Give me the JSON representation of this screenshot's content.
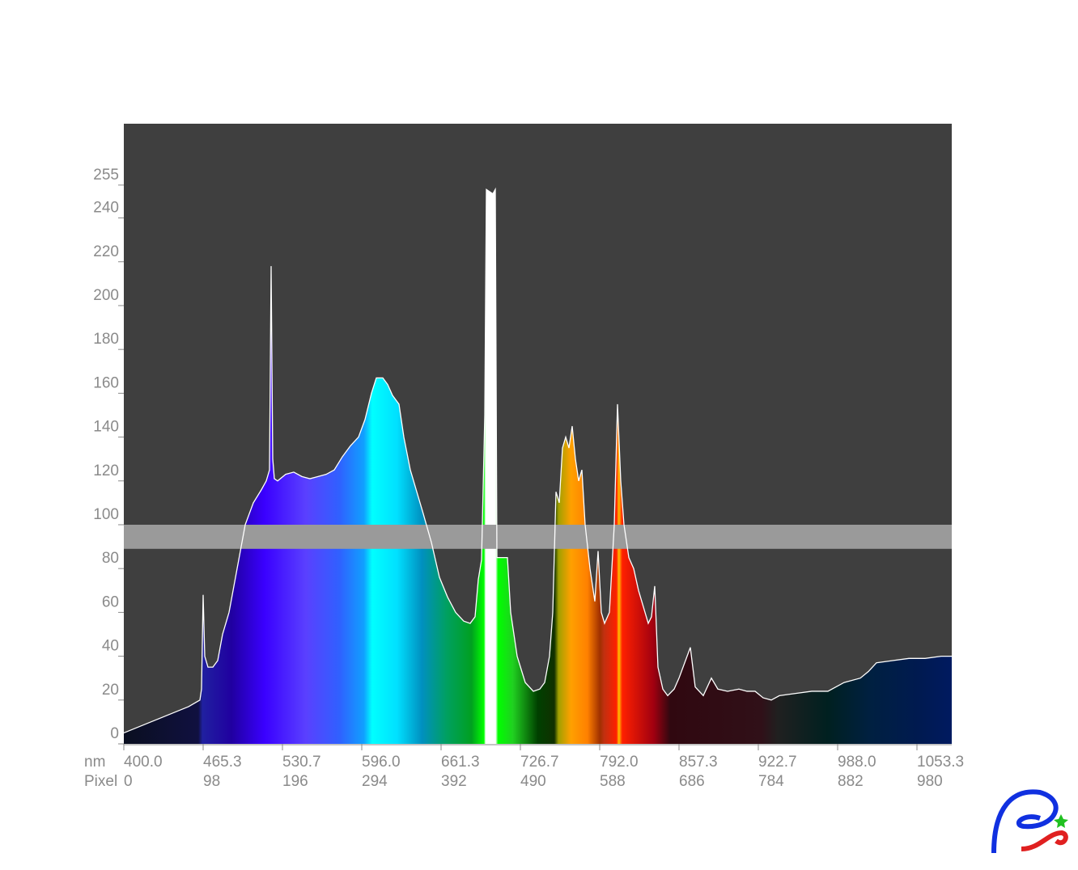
{
  "chart_data": {
    "type": "area",
    "x": [
      0,
      20,
      40,
      60,
      80,
      94,
      96,
      98,
      100,
      104,
      110,
      116,
      122,
      130,
      140,
      150,
      160,
      170,
      176,
      180,
      182,
      184,
      186,
      190,
      200,
      210,
      220,
      230,
      240,
      250,
      260,
      270,
      280,
      290,
      298,
      306,
      312,
      320,
      326,
      332,
      340,
      346,
      354,
      362,
      370,
      380,
      390,
      400,
      410,
      420,
      428,
      434,
      438,
      442,
      446,
      448,
      456,
      459,
      461,
      470,
      474,
      478,
      486,
      496,
      506,
      514,
      520,
      526,
      530,
      534,
      538,
      542,
      546,
      550,
      554,
      558,
      562,
      566,
      570,
      576,
      582,
      586,
      590,
      594,
      600,
      606,
      610,
      614,
      618,
      624,
      630,
      636,
      648,
      652,
      656,
      660,
      666,
      672,
      680,
      686,
      700,
      706,
      716,
      726,
      734,
      746,
      760,
      770,
      780,
      790,
      800,
      810,
      830,
      850,
      870,
      890,
      910,
      920,
      930,
      950,
      970,
      990,
      1010,
      1023
    ],
    "values": [
      5,
      8,
      11,
      14,
      17,
      20,
      25,
      68,
      40,
      35,
      35,
      38,
      50,
      60,
      80,
      100,
      110,
      116,
      120,
      125,
      218,
      130,
      121,
      120,
      123,
      124,
      122,
      121,
      122,
      123,
      125,
      131,
      136,
      140,
      148,
      160,
      167,
      167,
      164,
      159,
      155,
      140,
      125,
      115,
      105,
      92,
      76,
      67,
      60,
      56,
      55,
      58,
      75,
      84,
      150,
      253,
      251,
      253,
      85,
      85,
      85,
      60,
      40,
      28,
      24,
      25,
      28,
      40,
      60,
      115,
      110,
      135,
      140,
      135,
      145,
      130,
      120,
      125,
      100,
      80,
      65,
      88,
      60,
      55,
      60,
      100,
      155,
      120,
      100,
      85,
      80,
      70,
      55,
      58,
      72,
      35,
      25,
      22,
      25,
      30,
      44,
      26,
      22,
      30,
      25,
      24,
      25,
      24,
      24,
      21,
      20,
      22,
      23,
      24,
      24,
      28,
      30,
      33,
      37,
      38,
      39,
      39,
      40,
      40
    ],
    "xlim": [
      0,
      1023
    ],
    "ylim": [
      0,
      283
    ],
    "yticks": [
      0,
      20,
      40,
      60,
      80,
      100,
      120,
      140,
      160,
      180,
      200,
      220,
      240,
      255
    ],
    "xticks": [
      0,
      98,
      196,
      294,
      392,
      490,
      588,
      686,
      784,
      882,
      980
    ],
    "nm_labels": [
      "400.0",
      "465.3",
      "530.7",
      "596.0",
      "661.3",
      "726.7",
      "792.0",
      "857.3",
      "922.7",
      "988.0",
      "1053.3"
    ],
    "row_labels": [
      "nm",
      "Pixel"
    ],
    "band": [
      89,
      100
    ],
    "band_color": "#9a9a9a",
    "line_color": "#ffffff",
    "background": "#3f3f3f"
  }
}
